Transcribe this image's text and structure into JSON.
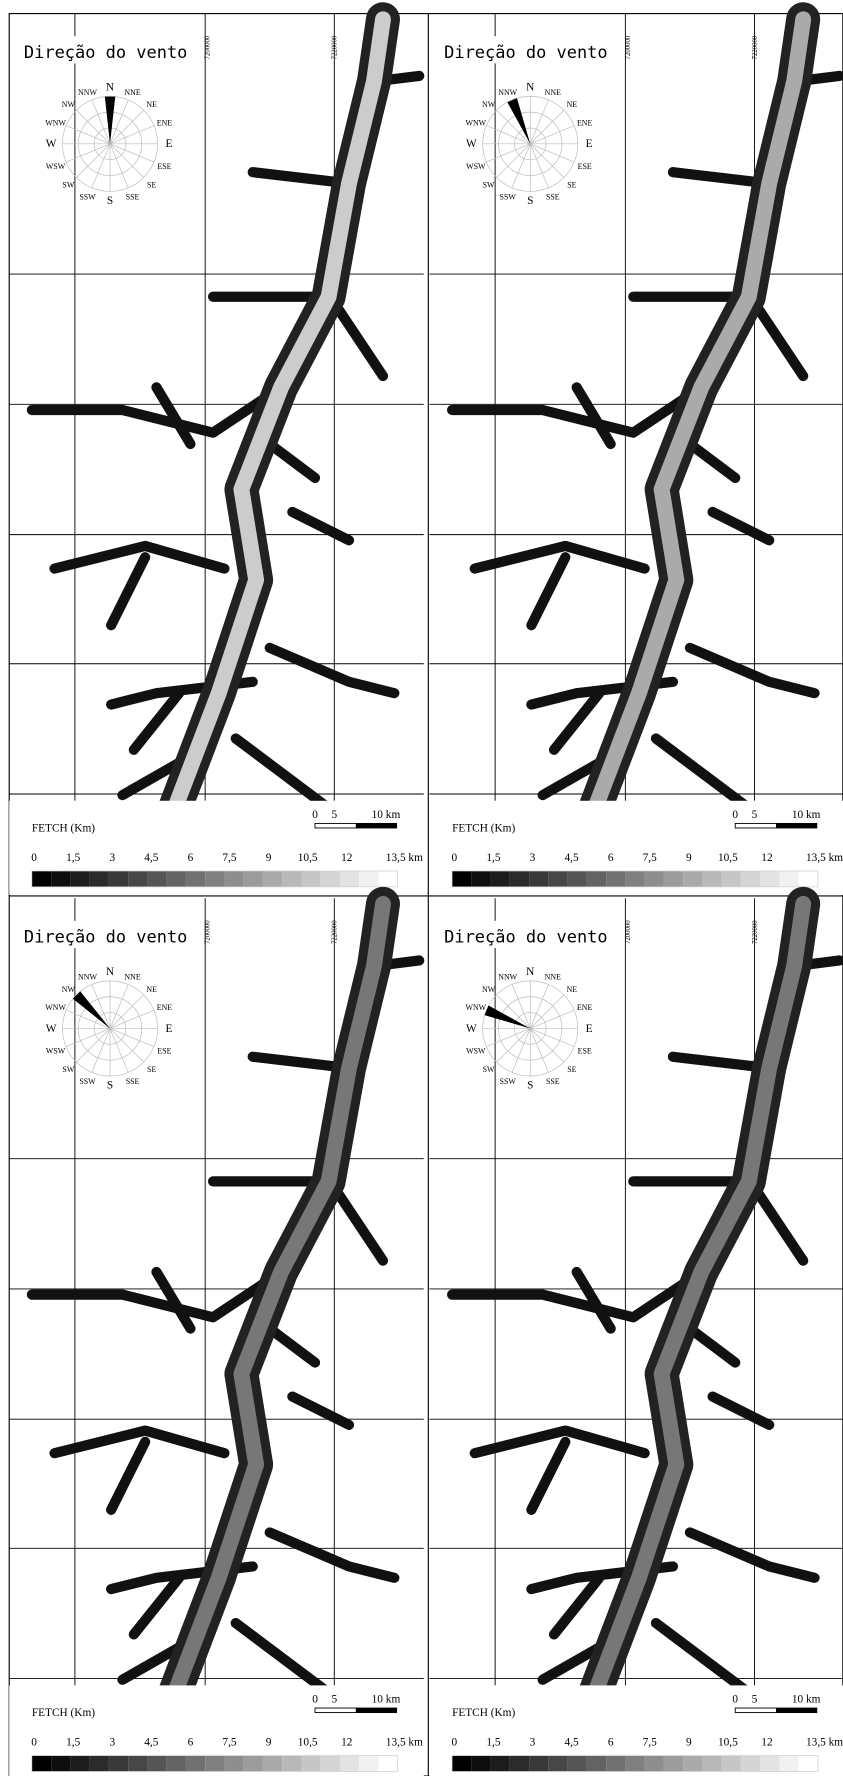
{
  "panels": [
    {
      "title": "Direção do vento",
      "wind_direction": "N",
      "compass": [
        "N",
        "NNE",
        "NE",
        "ENE",
        "E",
        "ESE",
        "SE",
        "SSE",
        "S",
        "SSW",
        "SW",
        "WSW",
        "W",
        "WNW",
        "NW",
        "NNW"
      ],
      "coordinates": [
        "7200000",
        "7220000"
      ],
      "legend_title": "FETCH (Km)",
      "scale_bar": [
        "0",
        "5",
        "10 km"
      ],
      "legend_ticks": [
        "0",
        "1,5",
        "3",
        "4,5",
        "6",
        "7,5",
        "9",
        "10,5",
        "12",
        "13,5 km"
      ]
    },
    {
      "title": "Direção do vento",
      "wind_direction": "NNW",
      "compass": [
        "N",
        "NNE",
        "NE",
        "ENE",
        "E",
        "ESE",
        "SE",
        "SSE",
        "S",
        "SSW",
        "SW",
        "WSW",
        "W",
        "WNW",
        "NW",
        "NNW"
      ],
      "coordinates": [
        "7200000",
        "7220000"
      ],
      "legend_title": "FETCH (Km)",
      "scale_bar": [
        "0",
        "5",
        "10 km"
      ],
      "legend_ticks": [
        "0",
        "1,5",
        "3",
        "4,5",
        "6",
        "7,5",
        "9",
        "10,5",
        "12",
        "13,5 km"
      ]
    },
    {
      "title": "Direção do vento",
      "wind_direction": "NW",
      "compass": [
        "N",
        "NNE",
        "NE",
        "ENE",
        "E",
        "ESE",
        "SE",
        "SSE",
        "S",
        "SSW",
        "SW",
        "WSW",
        "W",
        "WNW",
        "NW",
        "NNW"
      ],
      "coordinates": [
        "7200000",
        "7220000"
      ],
      "legend_title": "FETCH (Km)",
      "scale_bar": [
        "0",
        "5",
        "10 km"
      ],
      "legend_ticks": [
        "0",
        "1,5",
        "3",
        "4,5",
        "6",
        "7,5",
        "9",
        "10,5",
        "12",
        "13,5 km"
      ]
    },
    {
      "title": "Direção do vento",
      "wind_direction": "WNW",
      "compass": [
        "N",
        "NNE",
        "NE",
        "ENE",
        "E",
        "ESE",
        "SE",
        "SSE",
        "S",
        "SSW",
        "SW",
        "WSW",
        "W",
        "WNW",
        "NW",
        "NNW"
      ],
      "coordinates": [
        "7200000",
        "7220000"
      ],
      "legend_title": "FETCH (Km)",
      "scale_bar": [
        "0",
        "5",
        "10 km"
      ],
      "legend_ticks": [
        "0",
        "1,5",
        "3",
        "4,5",
        "6",
        "7,5",
        "9",
        "10,5",
        "12",
        "13,5 km"
      ]
    }
  ]
}
